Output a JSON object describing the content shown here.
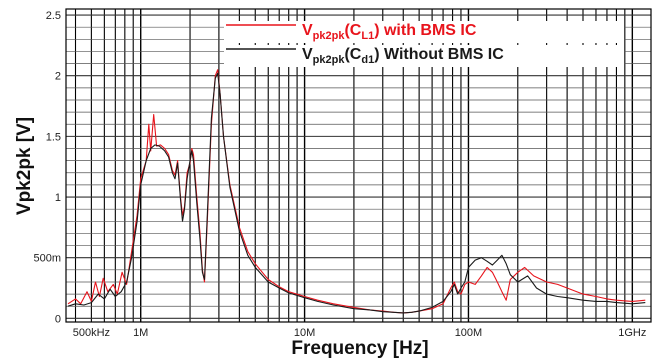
{
  "chart_data": {
    "type": "line",
    "title": "",
    "xlabel": "Frequency [Hz]",
    "ylabel": "Vpk2pk [V]",
    "x_scale": "log",
    "xlim": [
      350000,
      1300000000
    ],
    "ylim": [
      -0.03,
      2.55
    ],
    "grid": true,
    "legend_position": "top-right",
    "x_ticks": [
      {
        "value": 500000,
        "label": "500kHz"
      },
      {
        "value": 1000000,
        "label": "1M"
      },
      {
        "value": 10000000,
        "label": "10M"
      },
      {
        "value": 100000000,
        "label": "100M"
      },
      {
        "value": 1000000000,
        "label": "1GHz"
      }
    ],
    "y_ticks": [
      {
        "value": 0,
        "label": "0"
      },
      {
        "value": 0.5,
        "label": "500m"
      },
      {
        "value": 1,
        "label": "1"
      },
      {
        "value": 1.5,
        "label": "1.5"
      },
      {
        "value": 2,
        "label": "2"
      },
      {
        "value": 2.5,
        "label": "2.5"
      }
    ],
    "series": [
      {
        "legend": {
          "base": "V",
          "sub1": "pk2pk",
          "mid": "(C",
          "sub2": "L1",
          "tail": ") with BMS IC"
        },
        "color": "#e8141c",
        "points": [
          [
            360000,
            0.12
          ],
          [
            400000,
            0.16
          ],
          [
            430000,
            0.12
          ],
          [
            470000,
            0.22
          ],
          [
            500000,
            0.14
          ],
          [
            530000,
            0.3
          ],
          [
            560000,
            0.18
          ],
          [
            590000,
            0.33
          ],
          [
            630000,
            0.22
          ],
          [
            680000,
            0.28
          ],
          [
            720000,
            0.2
          ],
          [
            770000,
            0.38
          ],
          [
            820000,
            0.28
          ],
          [
            880000,
            0.55
          ],
          [
            950000,
            0.85
          ],
          [
            1000000,
            1.15
          ],
          [
            1080000,
            1.3
          ],
          [
            1120000,
            1.6
          ],
          [
            1150000,
            1.38
          ],
          [
            1200000,
            1.68
          ],
          [
            1250000,
            1.42
          ],
          [
            1320000,
            1.43
          ],
          [
            1400000,
            1.4
          ],
          [
            1480000,
            1.35
          ],
          [
            1560000,
            1.22
          ],
          [
            1620000,
            1.18
          ],
          [
            1680000,
            1.3
          ],
          [
            1750000,
            1.0
          ],
          [
            1800000,
            0.85
          ],
          [
            1850000,
            0.92
          ],
          [
            1920000,
            1.2
          ],
          [
            2000000,
            1.28
          ],
          [
            2050000,
            1.4
          ],
          [
            2100000,
            1.35
          ],
          [
            2200000,
            1.0
          ],
          [
            2300000,
            0.7
          ],
          [
            2380000,
            0.4
          ],
          [
            2450000,
            0.3
          ],
          [
            2550000,
            0.8
          ],
          [
            2700000,
            1.6
          ],
          [
            2850000,
            2.0
          ],
          [
            2950000,
            2.05
          ],
          [
            3050000,
            1.85
          ],
          [
            3200000,
            1.5
          ],
          [
            3500000,
            1.1
          ],
          [
            4000000,
            0.75
          ],
          [
            4500000,
            0.55
          ],
          [
            5000000,
            0.45
          ],
          [
            6000000,
            0.32
          ],
          [
            7000000,
            0.26
          ],
          [
            8000000,
            0.22
          ],
          [
            10000000,
            0.18
          ],
          [
            12000000,
            0.15
          ],
          [
            15000000,
            0.12
          ],
          [
            20000000,
            0.09
          ],
          [
            25000000,
            0.07
          ],
          [
            30000000,
            0.06
          ],
          [
            35000000,
            0.05
          ],
          [
            40000000,
            0.045
          ],
          [
            45000000,
            0.05
          ],
          [
            50000000,
            0.06
          ],
          [
            60000000,
            0.08
          ],
          [
            70000000,
            0.12
          ],
          [
            78000000,
            0.25
          ],
          [
            82000000,
            0.3
          ],
          [
            86000000,
            0.22
          ],
          [
            90000000,
            0.2
          ],
          [
            95000000,
            0.28
          ],
          [
            100000000,
            0.3
          ],
          [
            110000000,
            0.28
          ],
          [
            120000000,
            0.35
          ],
          [
            130000000,
            0.42
          ],
          [
            140000000,
            0.38
          ],
          [
            150000000,
            0.3
          ],
          [
            160000000,
            0.22
          ],
          [
            170000000,
            0.15
          ],
          [
            180000000,
            0.32
          ],
          [
            200000000,
            0.38
          ],
          [
            220000000,
            0.42
          ],
          [
            250000000,
            0.35
          ],
          [
            300000000,
            0.3
          ],
          [
            350000000,
            0.28
          ],
          [
            400000000,
            0.25
          ],
          [
            500000000,
            0.2
          ],
          [
            600000000,
            0.18
          ],
          [
            700000000,
            0.16
          ],
          [
            800000000,
            0.15
          ],
          [
            1000000000,
            0.14
          ],
          [
            1200000000,
            0.15
          ]
        ]
      },
      {
        "legend": {
          "base": "V",
          "sub1": "pk2pk",
          "mid": "(C",
          "sub2": "d1",
          "tail": ") Without BMS IC"
        },
        "color": "#1a1a1a",
        "points": [
          [
            360000,
            0.1
          ],
          [
            400000,
            0.12
          ],
          [
            450000,
            0.11
          ],
          [
            500000,
            0.13
          ],
          [
            550000,
            0.2
          ],
          [
            600000,
            0.16
          ],
          [
            650000,
            0.24
          ],
          [
            700000,
            0.18
          ],
          [
            760000,
            0.22
          ],
          [
            820000,
            0.3
          ],
          [
            880000,
            0.5
          ],
          [
            950000,
            0.8
          ],
          [
            1000000,
            1.1
          ],
          [
            1080000,
            1.3
          ],
          [
            1150000,
            1.4
          ],
          [
            1220000,
            1.43
          ],
          [
            1300000,
            1.42
          ],
          [
            1400000,
            1.38
          ],
          [
            1480000,
            1.33
          ],
          [
            1560000,
            1.2
          ],
          [
            1620000,
            1.15
          ],
          [
            1680000,
            1.28
          ],
          [
            1750000,
            0.98
          ],
          [
            1800000,
            0.8
          ],
          [
            1850000,
            0.9
          ],
          [
            1920000,
            1.15
          ],
          [
            2000000,
            1.3
          ],
          [
            2050000,
            1.38
          ],
          [
            2100000,
            1.3
          ],
          [
            2200000,
            0.95
          ],
          [
            2300000,
            0.65
          ],
          [
            2380000,
            0.38
          ],
          [
            2450000,
            0.32
          ],
          [
            2550000,
            0.85
          ],
          [
            2700000,
            1.65
          ],
          [
            2850000,
            1.98
          ],
          [
            2950000,
            2.02
          ],
          [
            3050000,
            1.85
          ],
          [
            3200000,
            1.5
          ],
          [
            3500000,
            1.08
          ],
          [
            4000000,
            0.72
          ],
          [
            4500000,
            0.52
          ],
          [
            5000000,
            0.42
          ],
          [
            6000000,
            0.3
          ],
          [
            7000000,
            0.25
          ],
          [
            8000000,
            0.21
          ],
          [
            10000000,
            0.17
          ],
          [
            12000000,
            0.14
          ],
          [
            15000000,
            0.11
          ],
          [
            20000000,
            0.08
          ],
          [
            25000000,
            0.07
          ],
          [
            30000000,
            0.055
          ],
          [
            35000000,
            0.05
          ],
          [
            40000000,
            0.045
          ],
          [
            45000000,
            0.05
          ],
          [
            50000000,
            0.06
          ],
          [
            60000000,
            0.09
          ],
          [
            70000000,
            0.14
          ],
          [
            78000000,
            0.22
          ],
          [
            82000000,
            0.28
          ],
          [
            86000000,
            0.2
          ],
          [
            90000000,
            0.25
          ],
          [
            95000000,
            0.3
          ],
          [
            100000000,
            0.42
          ],
          [
            110000000,
            0.48
          ],
          [
            120000000,
            0.5
          ],
          [
            130000000,
            0.47
          ],
          [
            140000000,
            0.44
          ],
          [
            150000000,
            0.48
          ],
          [
            160000000,
            0.52
          ],
          [
            170000000,
            0.45
          ],
          [
            180000000,
            0.36
          ],
          [
            200000000,
            0.3
          ],
          [
            230000000,
            0.35
          ],
          [
            260000000,
            0.25
          ],
          [
            300000000,
            0.2
          ],
          [
            350000000,
            0.18
          ],
          [
            400000000,
            0.17
          ],
          [
            500000000,
            0.15
          ],
          [
            600000000,
            0.14
          ],
          [
            700000000,
            0.14
          ],
          [
            800000000,
            0.13
          ],
          [
            1000000000,
            0.12
          ],
          [
            1200000000,
            0.13
          ]
        ]
      }
    ]
  }
}
